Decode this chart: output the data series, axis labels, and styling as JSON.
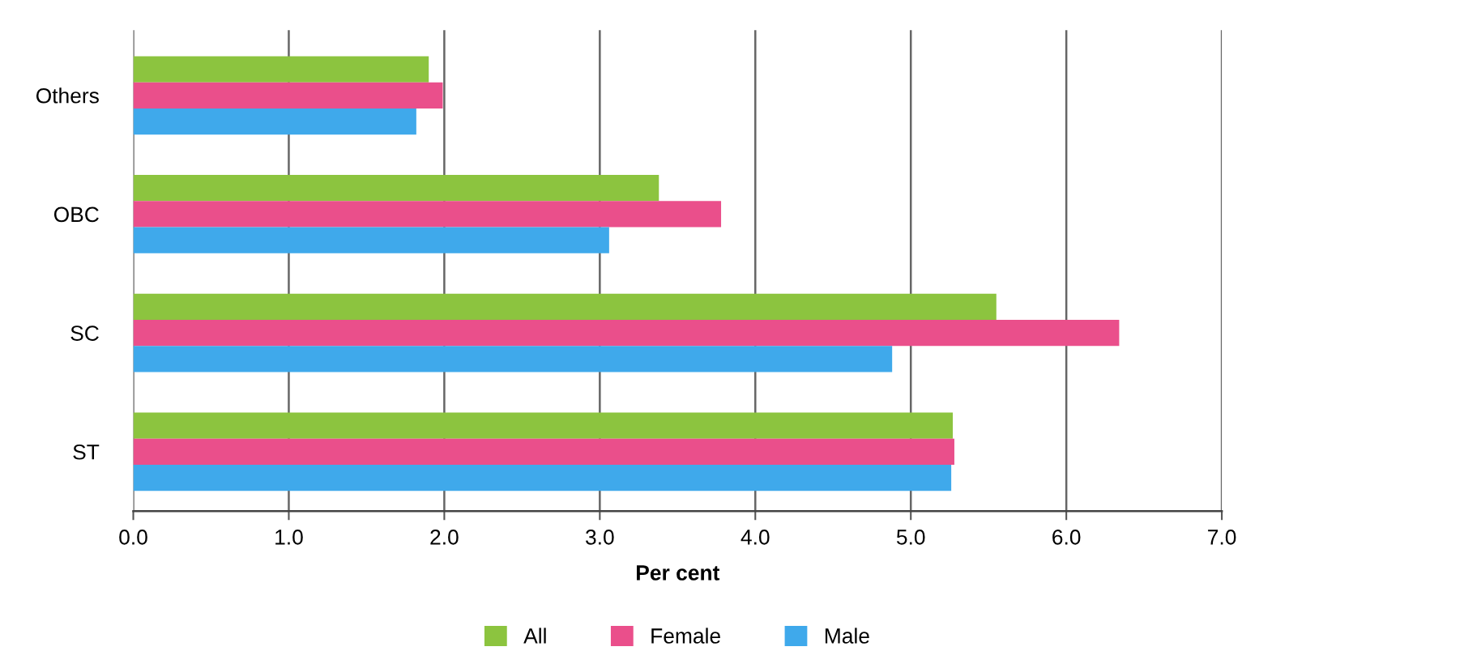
{
  "chart_data": {
    "type": "bar",
    "orientation": "horizontal",
    "xlabel": "Per cent",
    "categories": [
      "Others",
      "OBC",
      "SC",
      "ST"
    ],
    "series": [
      {
        "name": "All",
        "color": "#8cc43f",
        "values": [
          1.9,
          3.38,
          5.55,
          5.27
        ]
      },
      {
        "name": "Female",
        "color": "#ea4f8b",
        "values": [
          1.99,
          3.78,
          6.34,
          5.28
        ]
      },
      {
        "name": "Male",
        "color": "#3fa9eb",
        "values": [
          1.82,
          3.06,
          4.88,
          5.26
        ]
      }
    ],
    "xlim": [
      0,
      7
    ],
    "xticks": [
      {
        "value": 0,
        "label": "0.0"
      },
      {
        "value": 1,
        "label": "1.0"
      },
      {
        "value": 2,
        "label": "2.0"
      },
      {
        "value": 3,
        "label": "3.0"
      },
      {
        "value": 4,
        "label": "4.0"
      },
      {
        "value": 5,
        "label": "5.0"
      },
      {
        "value": 6,
        "label": "6.0"
      },
      {
        "value": 7,
        "label": "7.0"
      }
    ],
    "grid": "x",
    "legend": "bottom"
  }
}
